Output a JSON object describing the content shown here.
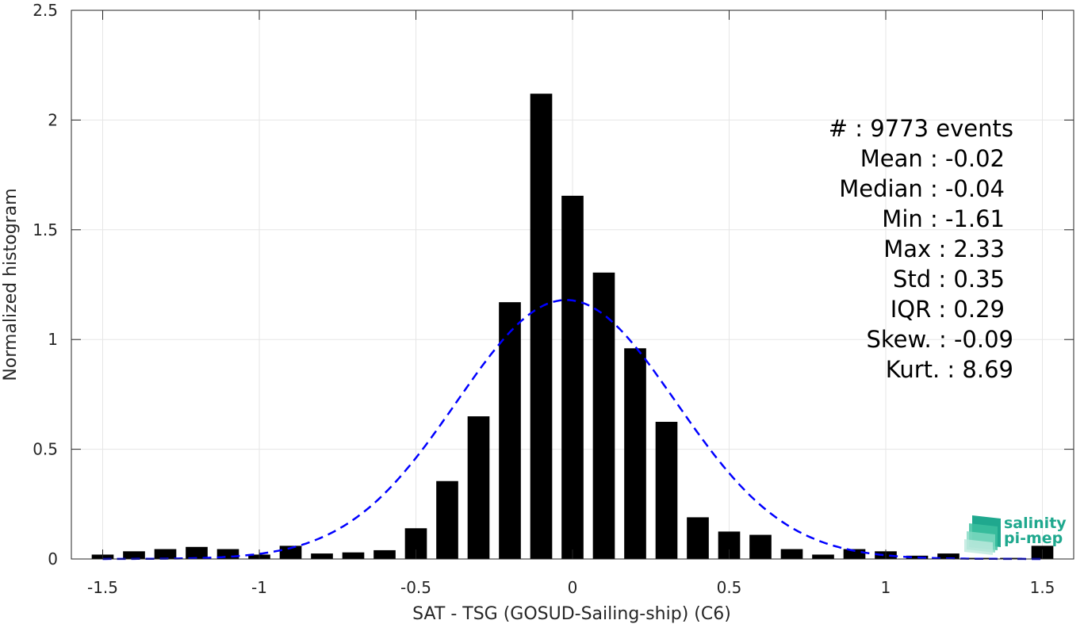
{
  "chart_data": {
    "type": "bar",
    "xlabel": "SAT - TSG (GOSUD-Sailing-ship) (C6)",
    "ylabel": "Normalized histogram",
    "xlim": [
      -1.6,
      1.6
    ],
    "ylim": [
      0,
      2.5
    ],
    "xticks": [
      -1.5,
      -1,
      -0.5,
      0,
      0.5,
      1,
      1.5
    ],
    "xtick_labels": [
      "-1.5",
      "-1",
      "-0.5",
      "0",
      "0.5",
      "1",
      "1.5"
    ],
    "yticks": [
      0,
      0.5,
      1,
      1.5,
      2,
      2.5
    ],
    "ytick_labels": [
      "0",
      "0.5",
      "1",
      "1.5",
      "2",
      "2.5"
    ],
    "grid": true,
    "bar_color": "#000000",
    "bin_width": 0.1,
    "bar_width_fraction": 0.7,
    "bars": {
      "x": [
        -1.5,
        -1.4,
        -1.3,
        -1.2,
        -1.1,
        -1.0,
        -0.9,
        -0.8,
        -0.7,
        -0.6,
        -0.5,
        -0.4,
        -0.3,
        -0.2,
        -0.1,
        0.0,
        0.1,
        0.2,
        0.3,
        0.4,
        0.5,
        0.6,
        0.7,
        0.8,
        0.9,
        1.0,
        1.1,
        1.2,
        1.3,
        1.4,
        1.5
      ],
      "values": [
        0.02,
        0.035,
        0.045,
        0.055,
        0.045,
        0.02,
        0.06,
        0.025,
        0.03,
        0.04,
        0.14,
        0.355,
        0.65,
        1.17,
        2.12,
        1.655,
        1.305,
        0.96,
        0.625,
        0.19,
        0.125,
        0.11,
        0.045,
        0.02,
        0.045,
        0.035,
        0.015,
        0.025,
        0.005,
        0.005,
        0.06
      ]
    },
    "fit_curve": {
      "style": "dashed",
      "color": "#0000ff",
      "mean": -0.02,
      "std": 0.35,
      "peak": 1.18
    }
  },
  "stats": {
    "lines": [
      "#  : 9773 events",
      "Mean : -0.02",
      "Median : -0.04",
      "Min : -1.61",
      "Max : 2.33",
      "Std : 0.35",
      "IQR : 0.29",
      "Skew. : -0.09",
      "Kurt. : 8.69"
    ]
  },
  "logo": {
    "line1": "salinity",
    "line2": "pi-mep"
  }
}
